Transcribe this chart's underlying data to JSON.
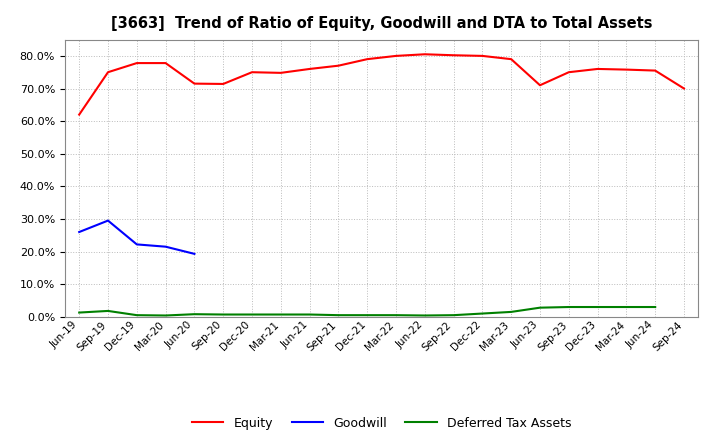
{
  "title": "[3663]  Trend of Ratio of Equity, Goodwill and DTA to Total Assets",
  "x_labels": [
    "Jun-19",
    "Sep-19",
    "Dec-19",
    "Mar-20",
    "Jun-20",
    "Sep-20",
    "Dec-20",
    "Mar-21",
    "Jun-21",
    "Sep-21",
    "Dec-21",
    "Mar-22",
    "Jun-22",
    "Sep-22",
    "Dec-22",
    "Mar-23",
    "Jun-23",
    "Sep-23",
    "Dec-23",
    "Mar-24",
    "Jun-24",
    "Sep-24"
  ],
  "equity": [
    0.62,
    0.75,
    0.778,
    0.778,
    0.715,
    0.714,
    0.75,
    0.748,
    0.76,
    0.77,
    0.79,
    0.8,
    0.805,
    0.802,
    0.8,
    0.79,
    0.71,
    0.75,
    0.76,
    0.758,
    0.755,
    0.7
  ],
  "goodwill": [
    0.26,
    0.295,
    0.222,
    0.215,
    0.193,
    null,
    null,
    null,
    null,
    null,
    null,
    null,
    null,
    null,
    null,
    null,
    null,
    null,
    null,
    null,
    null,
    null
  ],
  "dta": [
    0.013,
    0.018,
    0.005,
    0.004,
    0.008,
    0.007,
    0.007,
    0.007,
    0.007,
    0.005,
    0.005,
    0.005,
    0.004,
    0.005,
    0.01,
    0.015,
    0.028,
    0.03,
    0.03,
    0.03,
    0.03,
    null
  ],
  "equity_color": "#FF0000",
  "goodwill_color": "#0000FF",
  "dta_color": "#008000",
  "bg_color": "#FFFFFF",
  "plot_bg_color": "#FFFFFF",
  "grid_color": "#AAAAAA",
  "ylim": [
    0.0,
    0.85
  ],
  "yticks": [
    0.0,
    0.1,
    0.2,
    0.3,
    0.4,
    0.5,
    0.6,
    0.7,
    0.8
  ],
  "legend_labels": [
    "Equity",
    "Goodwill",
    "Deferred Tax Assets"
  ]
}
